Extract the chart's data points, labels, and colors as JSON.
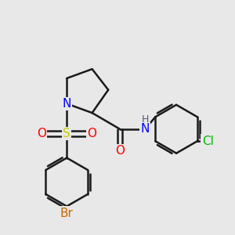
{
  "bg_color": "#e8e8e8",
  "bond_color": "#1a1a1a",
  "bond_width": 1.8,
  "atom_colors": {
    "N": "#0000ff",
    "O": "#ff0000",
    "S": "#cccc00",
    "Br": "#cc6600",
    "Cl": "#00bb00",
    "H": "#555577",
    "C": "#1a1a1a"
  },
  "font_size": 10
}
